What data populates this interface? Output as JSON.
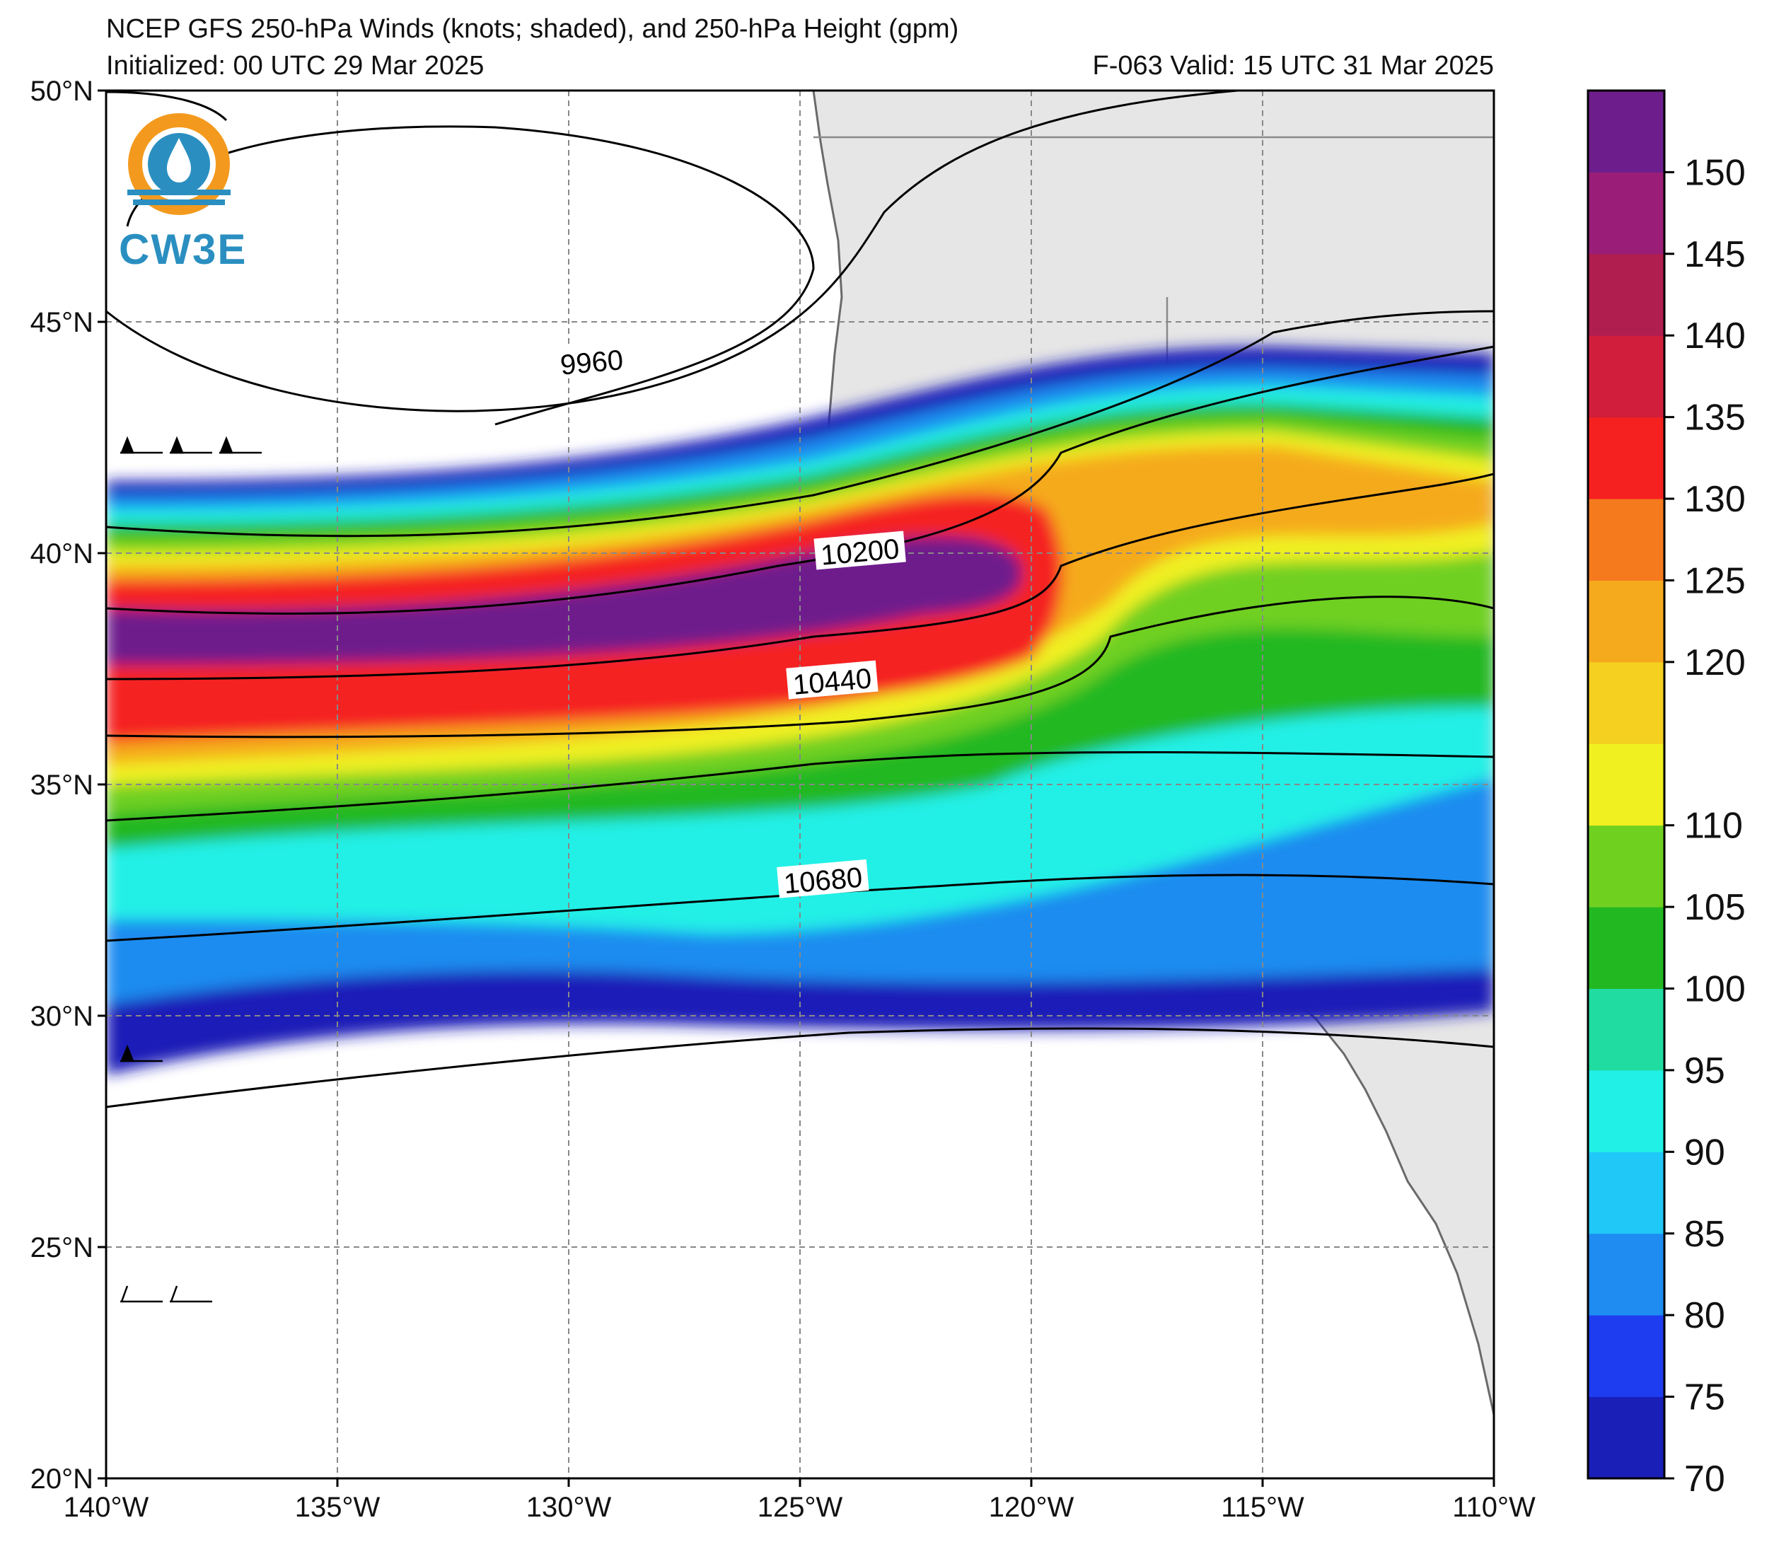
{
  "header": {
    "title": "NCEP GFS 250-hPa Winds (knots; shaded), and 250-hPa Height (gpm)",
    "initialized": "Initialized: 00 UTC 29 Mar 2025",
    "valid": "F-063  Valid: 15 UTC 31 Mar 2025"
  },
  "logo": {
    "text": "CW3E"
  },
  "map": {
    "lon_range": [
      -140,
      -110
    ],
    "lat_range": [
      20,
      50
    ],
    "lon_ticks": [
      {
        "value": -140,
        "label": "140°W"
      },
      {
        "value": -135,
        "label": "135°W"
      },
      {
        "value": -130,
        "label": "130°W"
      },
      {
        "value": -125,
        "label": "125°W"
      },
      {
        "value": -120,
        "label": "120°W"
      },
      {
        "value": -115,
        "label": "115°W"
      },
      {
        "value": -110,
        "label": "110°W"
      }
    ],
    "lat_ticks": [
      {
        "value": 50,
        "label": "50°N"
      },
      {
        "value": 45,
        "label": "45°N"
      },
      {
        "value": 40,
        "label": "40°N"
      },
      {
        "value": 35,
        "label": "35°N"
      },
      {
        "value": 30,
        "label": "30°N"
      },
      {
        "value": 25,
        "label": "25°N"
      },
      {
        "value": 20,
        "label": "20°N"
      }
    ],
    "land_color": "#e6e6e6",
    "contour_labels": [
      {
        "text": "9960",
        "lon": -129.5,
        "lat": 44.1
      },
      {
        "text": "10200",
        "lon": -123.7,
        "lat": 40.0
      },
      {
        "text": "10440",
        "lon": -124.3,
        "lat": 37.2
      },
      {
        "text": "10680",
        "lon": -124.5,
        "lat": 32.9
      }
    ]
  },
  "colorbar": {
    "min": 70,
    "max": 155,
    "colors": [
      "#1a1fb8",
      "#1e3cf0",
      "#1e8cf0",
      "#20c8f8",
      "#20f0e6",
      "#20dca0",
      "#22b822",
      "#70d020",
      "#f0f020",
      "#f5d020",
      "#f5aa1e",
      "#f57a1e",
      "#f52020",
      "#d01e3c",
      "#b01e50",
      "#9a1e78",
      "#6e1e8c"
    ],
    "ticks": [
      {
        "value": 70,
        "label": "70"
      },
      {
        "value": 75,
        "label": "75"
      },
      {
        "value": 80,
        "label": "80"
      },
      {
        "value": 85,
        "label": "85"
      },
      {
        "value": 90,
        "label": "90"
      },
      {
        "value": 95,
        "label": "95"
      },
      {
        "value": 100,
        "label": "100"
      },
      {
        "value": 105,
        "label": "105"
      },
      {
        "value": 110,
        "label": "110"
      },
      {
        "value": 120,
        "label": "120"
      },
      {
        "value": 125,
        "label": "125"
      },
      {
        "value": 130,
        "label": "130"
      },
      {
        "value": 135,
        "label": "135"
      },
      {
        "value": 140,
        "label": "140"
      },
      {
        "value": 145,
        "label": "145"
      },
      {
        "value": 150,
        "label": "150"
      }
    ]
  }
}
